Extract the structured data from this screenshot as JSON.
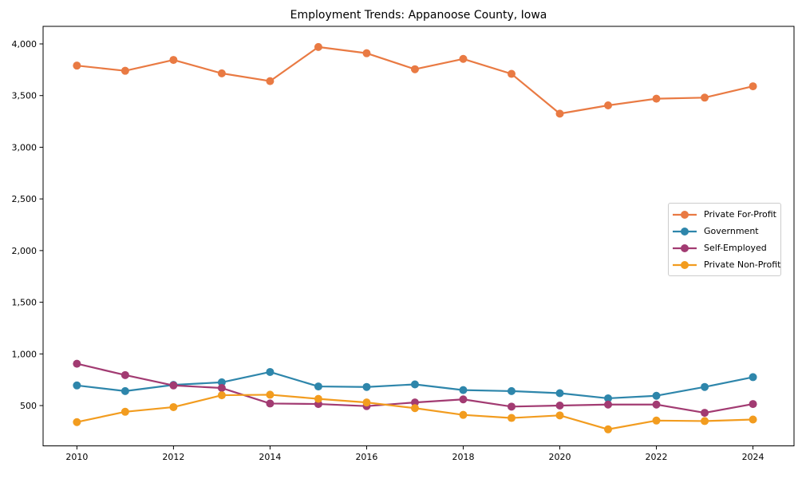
{
  "chart_data": {
    "type": "line",
    "title": "Employment Trends: Appanoose County, Iowa",
    "xlabel": "",
    "ylabel": "",
    "grid": false,
    "x": [
      2010,
      2011,
      2012,
      2013,
      2014,
      2015,
      2016,
      2017,
      2018,
      2019,
      2020,
      2021,
      2022,
      2023,
      2024
    ],
    "series": [
      {
        "name": "Private For-Profit",
        "color": "#E97A43",
        "values": [
          3790,
          3740,
          3845,
          3715,
          3640,
          3970,
          3910,
          3755,
          3855,
          3710,
          3325,
          3405,
          3470,
          3480,
          3590
        ]
      },
      {
        "name": "Government",
        "color": "#2E86AB",
        "values": [
          695,
          640,
          700,
          725,
          825,
          685,
          680,
          705,
          650,
          640,
          620,
          570,
          595,
          680,
          775
        ]
      },
      {
        "name": "Self-Employed",
        "color": "#A23B72",
        "values": [
          905,
          795,
          695,
          670,
          520,
          515,
          495,
          530,
          560,
          490,
          500,
          510,
          510,
          430,
          515
        ]
      },
      {
        "name": "Private Non-Profit",
        "color": "#F29C1F",
        "values": [
          340,
          440,
          485,
          600,
          605,
          565,
          530,
          475,
          410,
          380,
          405,
          270,
          355,
          350,
          365
        ]
      }
    ],
    "xticks": {
      "values": [
        2010,
        2012,
        2014,
        2016,
        2018,
        2020,
        2022,
        2024
      ],
      "labels": [
        "2010",
        "2012",
        "2014",
        "2016",
        "2018",
        "2020",
        "2022",
        "2024"
      ]
    },
    "yticks": {
      "values": [
        500,
        1000,
        1500,
        2000,
        2500,
        3000,
        3500,
        4000
      ],
      "labels": [
        "500",
        "1,000",
        "1,500",
        "2,000",
        "2,500",
        "3,000",
        "3,500",
        "4,000"
      ]
    },
    "xlim": [
      2009.3,
      2024.85
    ],
    "ylim": [
      110,
      4170
    ],
    "legend": {
      "position": "center right",
      "entries": [
        "Private For-Profit",
        "Government",
        "Self-Employed",
        "Private Non-Profit"
      ]
    },
    "axis_color": "#000000",
    "background_color": "#ffffff"
  }
}
